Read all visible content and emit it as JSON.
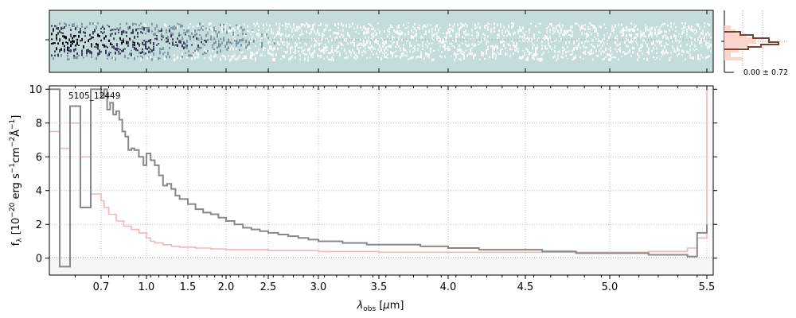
{
  "chart_data": {
    "type": "line",
    "object_label": "5105_12449",
    "xlabel": "λ_obs [μm]",
    "ylabel": "f_λ [10^-20 erg s^-1 cm^-2 Å^-1]",
    "ylim": [
      -1,
      10.2
    ],
    "x_axis_scale": "nonlinear (prism resolution)",
    "x_ticks": [
      "0.7",
      "1.0",
      "1.5",
      "2.0",
      "2.5",
      "3.0",
      "3.5",
      "4.0",
      "4.5",
      "5.0",
      "5.5"
    ],
    "y_ticks": [
      "0",
      "2",
      "4",
      "6",
      "8",
      "10"
    ],
    "grid": true,
    "hist_annotation": "0.00 ± 0.72",
    "colors": {
      "flux": "#888888",
      "error": "#f5b5b5",
      "spectrum2d_bg": "#c4dcdb",
      "hist_fill": "#fbd5cc",
      "hist_line": "#7a4030"
    },
    "series": [
      {
        "role": "flux",
        "x": [
          0.6,
          0.62,
          0.64,
          0.66,
          0.68,
          0.7,
          0.72,
          0.74,
          0.76,
          0.78,
          0.8,
          0.82,
          0.84,
          0.86,
          0.88,
          0.9,
          0.92,
          0.95,
          0.98,
          1.0,
          1.05,
          1.1,
          1.15,
          1.2,
          1.25,
          1.3,
          1.35,
          1.4,
          1.5,
          1.6,
          1.7,
          1.8,
          1.9,
          2.0,
          2.1,
          2.2,
          2.3,
          2.4,
          2.5,
          2.6,
          2.7,
          2.8,
          2.9,
          3.0,
          3.2,
          3.4,
          3.6,
          3.8,
          4.0,
          4.2,
          4.4,
          4.6,
          4.8,
          5.0,
          5.2,
          5.4,
          5.45,
          5.5
        ],
        "y": [
          10.0,
          -0.5,
          9.0,
          3.0,
          10.0,
          9.5,
          10.0,
          8.8,
          9.2,
          8.5,
          8.7,
          8.2,
          7.5,
          7.2,
          6.4,
          6.5,
          6.4,
          6.0,
          5.5,
          6.2,
          5.8,
          5.5,
          4.9,
          4.3,
          4.4,
          4.1,
          3.7,
          3.5,
          3.2,
          2.9,
          2.7,
          2.6,
          2.4,
          2.2,
          2.0,
          1.8,
          1.7,
          1.6,
          1.5,
          1.4,
          1.3,
          1.2,
          1.1,
          1.0,
          0.9,
          0.8,
          0.8,
          0.7,
          0.6,
          0.5,
          0.5,
          0.4,
          0.3,
          0.3,
          0.2,
          0.1,
          1.5,
          2.0
        ]
      },
      {
        "role": "error",
        "x": [
          0.6,
          0.62,
          0.64,
          0.66,
          0.68,
          0.7,
          0.72,
          0.75,
          0.8,
          0.85,
          0.9,
          0.95,
          1.0,
          1.05,
          1.1,
          1.2,
          1.3,
          1.4,
          1.6,
          1.8,
          2.0,
          2.5,
          3.0,
          3.5,
          4.0,
          4.5,
          5.0,
          5.2,
          5.4,
          5.45,
          5.5
        ],
        "y": [
          7.5,
          6.5,
          8.0,
          6.0,
          3.8,
          3.4,
          3.0,
          2.6,
          2.2,
          1.9,
          1.7,
          1.5,
          1.2,
          1.0,
          0.9,
          0.8,
          0.7,
          0.65,
          0.6,
          0.55,
          0.5,
          0.45,
          0.4,
          0.35,
          0.35,
          0.35,
          0.35,
          0.4,
          0.6,
          1.2,
          10.0
        ]
      }
    ]
  }
}
